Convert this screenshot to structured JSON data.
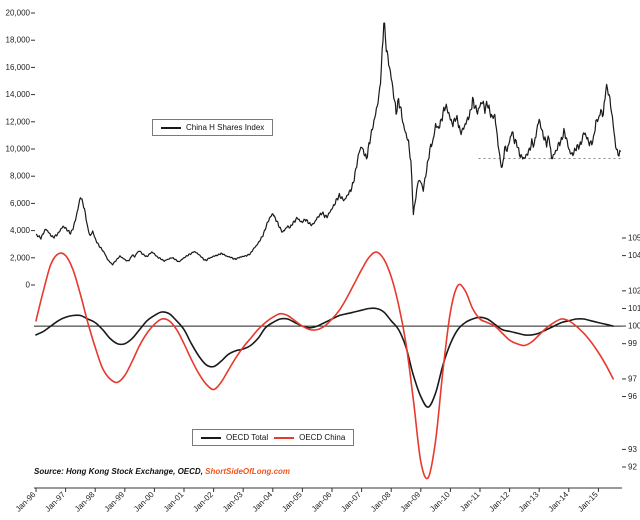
{
  "page": {
    "background": "#ffffff"
  },
  "chart_data": {
    "type": "line",
    "x_axis": {
      "labels": [
        "Jan-96",
        "Jan-97",
        "Jan-98",
        "Jan-99",
        "Jan-00",
        "Jan-01",
        "Jan-02",
        "Jan-03",
        "Jan-04",
        "Jan-05",
        "Jan-06",
        "Jan-07",
        "Jan-08",
        "Jan-09",
        "Jan-10",
        "Jan-11",
        "Jan-12",
        "Jan-13",
        "Jan-14",
        "Jan-15"
      ],
      "start_year": 1996,
      "end_year_numeric": 2015.75
    },
    "price_panel": {
      "axis_side": "left",
      "ylim": [
        0,
        20000
      ],
      "ticks": [
        {
          "v": 0,
          "label": "0"
        },
        {
          "v": 2000,
          "label": "2,000"
        },
        {
          "v": 4000,
          "label": "4,000"
        },
        {
          "v": 6000,
          "label": "6,000"
        },
        {
          "v": 8000,
          "label": "8,000"
        },
        {
          "v": 10000,
          "label": "10,000"
        },
        {
          "v": 12000,
          "label": "12,000"
        },
        {
          "v": 14000,
          "label": "14,000"
        },
        {
          "v": 16000,
          "label": "16,000"
        },
        {
          "v": 18000,
          "label": "18,000"
        },
        {
          "v": 20000,
          "label": "20,000"
        }
      ],
      "support_line": {
        "value": 9300,
        "from_year": 2010.95,
        "to_year": 2015.75,
        "style": "dotted",
        "color": "#8a8a8a"
      },
      "series": [
        {
          "name": "China H Shares Index",
          "color": "#1a1a1a",
          "frequency": "monthly",
          "start": "Jan-96",
          "values": [
            3700,
            3580,
            3450,
            3820,
            4120,
            3900,
            3650,
            3500,
            3620,
            3800,
            4080,
            4300,
            4180,
            3980,
            3800,
            4150,
            4800,
            5600,
            6500,
            6050,
            5250,
            4150,
            3600,
            3950,
            3400,
            3050,
            2780,
            2550,
            2280,
            1880,
            1680,
            1500,
            1720,
            1920,
            2120,
            2000,
            1880,
            1760,
            1860,
            2220,
            2080,
            2380,
            2520,
            2300,
            2180,
            2080,
            2280,
            2420,
            2300,
            2080,
            1980,
            1880,
            1760,
            1860,
            1920,
            2010,
            1940,
            1800,
            1700,
            1860,
            2000,
            2120,
            2230,
            2320,
            2460,
            2380,
            2240,
            2080,
            1880,
            1800,
            1960,
            2020,
            2120,
            2160,
            2220,
            2320,
            2260,
            2140,
            2080,
            2040,
            1940,
            1900,
            2000,
            2060,
            2100,
            2140,
            2200,
            2320,
            2620,
            2820,
            3050,
            3350,
            3650,
            4150,
            4650,
            5000,
            5250,
            4900,
            4550,
            4150,
            3880,
            4100,
            4320,
            4220,
            4520,
            4720,
            4950,
            4700,
            4620,
            4820,
            4700,
            4480,
            4420,
            4620,
            4950,
            5120,
            5320,
            5080,
            5020,
            5320,
            5620,
            5920,
            6320,
            6580,
            6380,
            6220,
            6520,
            6820,
            7120,
            7820,
            8820,
            9800,
            10200,
            9700,
            9300,
            10300,
            11200,
            12000,
            12900,
            13800,
            15800,
            19500,
            17500,
            16300,
            15300,
            14000,
            12700,
            13600,
            12800,
            11700,
            11100,
            10500,
            9000,
            5200,
            6500,
            7700,
            7600,
            7000,
            8100,
            9200,
            10200,
            10600,
            11800,
            11500,
            11900,
            12600,
            13200,
            12800,
            12200,
            11800,
            12300,
            12100,
            11200,
            11400,
            11800,
            12200,
            12600,
            13600,
            13100,
            12700,
            13200,
            13500,
            12900,
            13400,
            12700,
            12300,
            12500,
            10900,
            9400,
            8500,
            10100,
            9900,
            10600,
            11300,
            10600,
            10400,
            9600,
            9400,
            9300,
            9600,
            9900,
            10500,
            10300,
            11400,
            12200,
            11400,
            10800,
            10400,
            10900,
            9300,
            9600,
            9900,
            10400,
            10600,
            11300,
            10800,
            10000,
            9600,
            9700,
            10100,
            10200,
            10400,
            11200,
            11000,
            10500,
            10400,
            10700,
            12000,
            12200,
            12800,
            12500,
            14500,
            14300,
            13200,
            11800,
            10200,
            9600,
            9800
          ]
        }
      ]
    },
    "indicator_panel": {
      "axis_side": "right",
      "ylim": [
        92,
        105
      ],
      "baseline": 100,
      "ticks": [
        {
          "v": 105,
          "label": "105"
        },
        {
          "v": 104,
          "label": "104"
        },
        {
          "v": 102,
          "label": "102"
        },
        {
          "v": 101,
          "label": "101"
        },
        {
          "v": 100,
          "label": "100"
        },
        {
          "v": 99,
          "label": "99"
        },
        {
          "v": 97,
          "label": "97"
        },
        {
          "v": 96,
          "label": "96"
        },
        {
          "v": 93,
          "label": "93"
        },
        {
          "v": 92,
          "label": "92"
        }
      ],
      "series": [
        {
          "name": "OECD Total",
          "color": "#1a1a1a",
          "frequency": "quarterly",
          "start": "Q1-96",
          "values": [
            99.5,
            99.7,
            100.0,
            100.3,
            100.5,
            100.6,
            100.6,
            100.4,
            100.2,
            99.8,
            99.3,
            99.0,
            99.0,
            99.3,
            99.8,
            100.3,
            100.6,
            100.8,
            100.7,
            100.3,
            99.8,
            99.0,
            98.3,
            97.8,
            97.7,
            98.0,
            98.4,
            98.6,
            98.7,
            98.9,
            99.3,
            99.9,
            100.2,
            100.4,
            100.4,
            100.2,
            100.0,
            99.9,
            100.0,
            100.2,
            100.4,
            100.6,
            100.7,
            100.8,
            100.9,
            101.0,
            101.0,
            100.8,
            100.3,
            99.8,
            98.8,
            97.2,
            96.0,
            95.4,
            96.2,
            97.8,
            99.0,
            99.8,
            100.2,
            100.4,
            100.5,
            100.4,
            100.1,
            99.8,
            99.7,
            99.6,
            99.5,
            99.5,
            99.6,
            99.8,
            100.0,
            100.2,
            100.3,
            100.4,
            100.4,
            100.3,
            100.2,
            100.1,
            100.0
          ]
        },
        {
          "name": "OECD China",
          "color": "#e8392e",
          "frequency": "quarterly",
          "start": "Q1-96",
          "values": [
            100.3,
            102.0,
            103.5,
            104.1,
            104.0,
            103.2,
            101.8,
            100.2,
            98.8,
            97.6,
            97.0,
            96.8,
            97.2,
            98.0,
            98.9,
            99.6,
            100.1,
            100.4,
            100.3,
            99.8,
            99.0,
            98.1,
            97.3,
            96.7,
            96.4,
            96.8,
            97.5,
            98.2,
            98.8,
            99.3,
            99.8,
            100.2,
            100.5,
            100.7,
            100.6,
            100.3,
            100.0,
            99.8,
            99.8,
            100.0,
            100.4,
            100.9,
            101.6,
            102.4,
            103.2,
            103.9,
            104.2,
            103.8,
            102.8,
            101.2,
            99.0,
            95.8,
            92.3,
            91.4,
            93.5,
            97.5,
            100.8,
            102.3,
            102.0,
            101.0,
            100.4,
            100.2,
            100.0,
            99.6,
            99.2,
            99.0,
            98.9,
            99.1,
            99.5,
            99.9,
            100.2,
            100.4,
            100.3,
            100.0,
            99.6,
            99.1,
            98.5,
            97.8,
            97.0
          ]
        }
      ]
    }
  },
  "legends": {
    "price": {
      "items": [
        {
          "label": "China H Shares Index",
          "color": "#1a1a1a"
        }
      ]
    },
    "indicator": {
      "items": [
        {
          "label": "OECD Total",
          "color": "#1a1a1a"
        },
        {
          "label": "OECD China",
          "color": "#e8392e"
        }
      ]
    }
  },
  "source": {
    "prefix": "Source: Hong Kong Stock Exchange, OECD, ",
    "site": "ShortSideOfLong.com",
    "site_color": "#f0561d"
  }
}
